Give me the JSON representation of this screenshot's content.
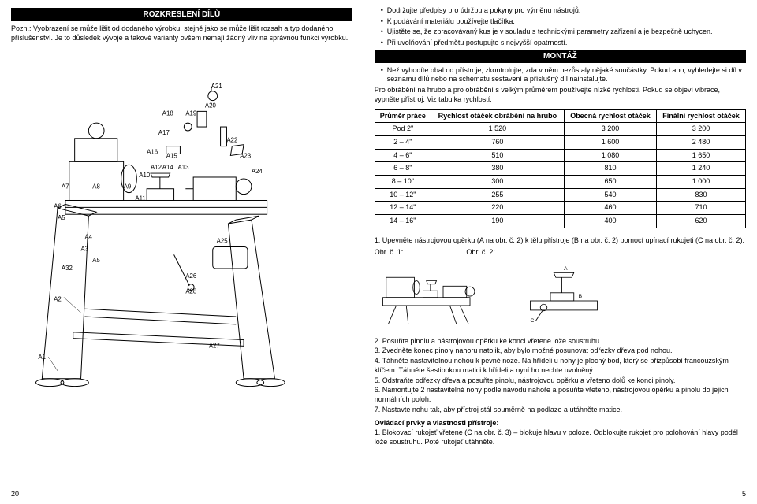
{
  "left": {
    "title": "ROZKRESLENÍ DÍLŮ",
    "note_label": "Pozn.:",
    "note_text": " Vyobrazení se může lišit od dodaného výrobku, stejně jako se může lišit rozsah a typ dodaného příslušenství. Je to důsledek vývoje a takové varianty ovšem nemají žádný vliv na správnou funkci výrobku.",
    "page_num": "20",
    "diagram_labels": [
      "A1",
      "A2",
      "A3",
      "A4",
      "A5",
      "A6",
      "A7",
      "A8",
      "A9",
      "A10",
      "A11",
      "A12",
      "A13",
      "A14",
      "A15",
      "A16",
      "A17",
      "A18",
      "A19",
      "A20",
      "A21",
      "A22",
      "A23",
      "A24",
      "A25",
      "A26",
      "A27",
      "A28"
    ]
  },
  "right": {
    "bullets": [
      "Dodržujte předpisy pro údržbu a pokyny pro výměnu nástrojů.",
      "K podávání materiálu používejte tlačítka.",
      "Ujistěte se, že zpracovávaný kus je v souladu s technickými parametry zařízení a je bezpečně uchycen.",
      "Při uvolňování předmětu postupujte s nejvyšší opatrností."
    ],
    "title": "MONTÁŽ",
    "intro_bullet": "Než vyhodíte obal od přístroje, zkontrolujte, zda v něm nezůstaly nějaké součástky. Pokud ano, vyhledejte si díl v seznamu dílů nebo na schématu sestavení a příslušný díl nainstalujte.",
    "advice": "Pro obrábění na hrubo a pro obrábění s velkým průměrem používejte nízké rychlosti. Pokud se objeví vibrace, vypněte přístroj. Viz tabulka rychlostí:",
    "table": {
      "headers": [
        "Průměr práce",
        "Rychlost otáček obrábění na hrubo",
        "Obecná rychlost otáček",
        "Finální rychlost otáček"
      ],
      "rows": [
        [
          "Pod 2\"",
          "1 520",
          "3 200",
          "3 200"
        ],
        [
          "2 – 4\"",
          "760",
          "1 600",
          "2 480"
        ],
        [
          "4 – 6\"",
          "510",
          "1 080",
          "1 650"
        ],
        [
          "6 – 8\"",
          "380",
          "810",
          "1 240"
        ],
        [
          "8 – 10\"",
          "300",
          "650",
          "1 000"
        ],
        [
          "10 – 12\"",
          "255",
          "540",
          "830"
        ],
        [
          "12 – 14\"",
          "220",
          "460",
          "710"
        ],
        [
          "14 – 16\"",
          "190",
          "400",
          "620"
        ]
      ]
    },
    "step1": "1. Upevněte nástrojovou opěrku (A na obr. č. 2) k tělu přístroje (B na obr. č. 2) pomocí upínací rukojeti (C na obr. č. 2).",
    "fig1_cap": "Obr. č. 1:",
    "fig2_cap": "Obr. č. 2:",
    "steps": [
      "2. Posuňte pinolu a nástrojovou opěrku ke konci vřetene lože soustruhu.",
      "3. Zvedněte konec pinoly nahoru natolik, aby bylo možné posunovat odřezky dřeva pod nohou.",
      "4. Táhněte nastavitelnou nohou k pevné noze. Na hřídeli u nohy je plochý bod, který se přizpůsobí francouzským klíčem. Táhněte šestibokou matici k hřídeli a nyní ho nechte uvolněný.",
      "5. Odstraňte odřezky dřeva a posuňte pinolu, nástrojovou opěrku a vřeteno dolů ke konci pinoly.",
      "6. Namontujte 2 nastavitelné nohy podle návodu nahoře a posuňte vřeteno, nástrojovou opěrku a pinolu do jejich normálních poloh.",
      "7. Nastavte nohu tak, aby přístroj stál souměrně na podlaze a utáhněte matice."
    ],
    "controls_head": "Ovládací prvky a vlastnosti přístroje:",
    "controls_item": "1. Blokovací rukojeť vřetene (C na obr. č. 3) – blokuje hlavu v poloze. Odblokujte rukojeť pro polohování hlavy podél lože soustruhu. Poté rukojeť utáhněte.",
    "page_num": "5"
  },
  "colors": {
    "black": "#000000",
    "white": "#ffffff",
    "line": "#000000"
  }
}
